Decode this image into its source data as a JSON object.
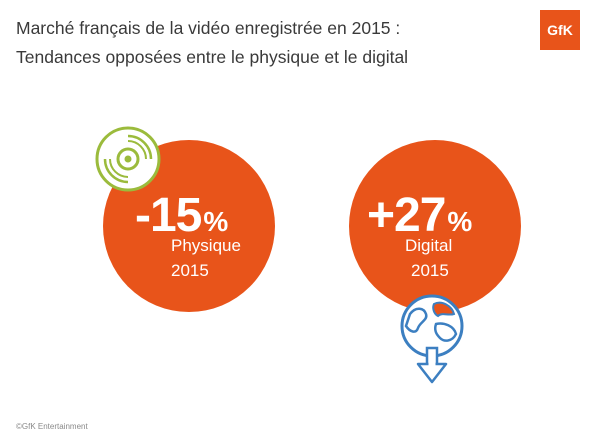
{
  "title": {
    "line1": "Marché français de la vidéo enregistrée en 2015 :",
    "line2": "Tendances opposées entre le physique et le digital"
  },
  "logo": {
    "text": "GfK",
    "color": "#e8541a"
  },
  "circles": [
    {
      "value": "-15",
      "unit": "%",
      "label": "Physique",
      "year": "2015",
      "icon": "disc-icon"
    },
    {
      "value": "+27",
      "unit": "%",
      "label": "Digital",
      "year": "2015",
      "icon": "globe-download-icon"
    }
  ],
  "colors": {
    "accent": "#e8541a",
    "icon_green": "#9bbb3c",
    "icon_blue": "#3c7fc1"
  },
  "footer": "©GfK Entertainment"
}
